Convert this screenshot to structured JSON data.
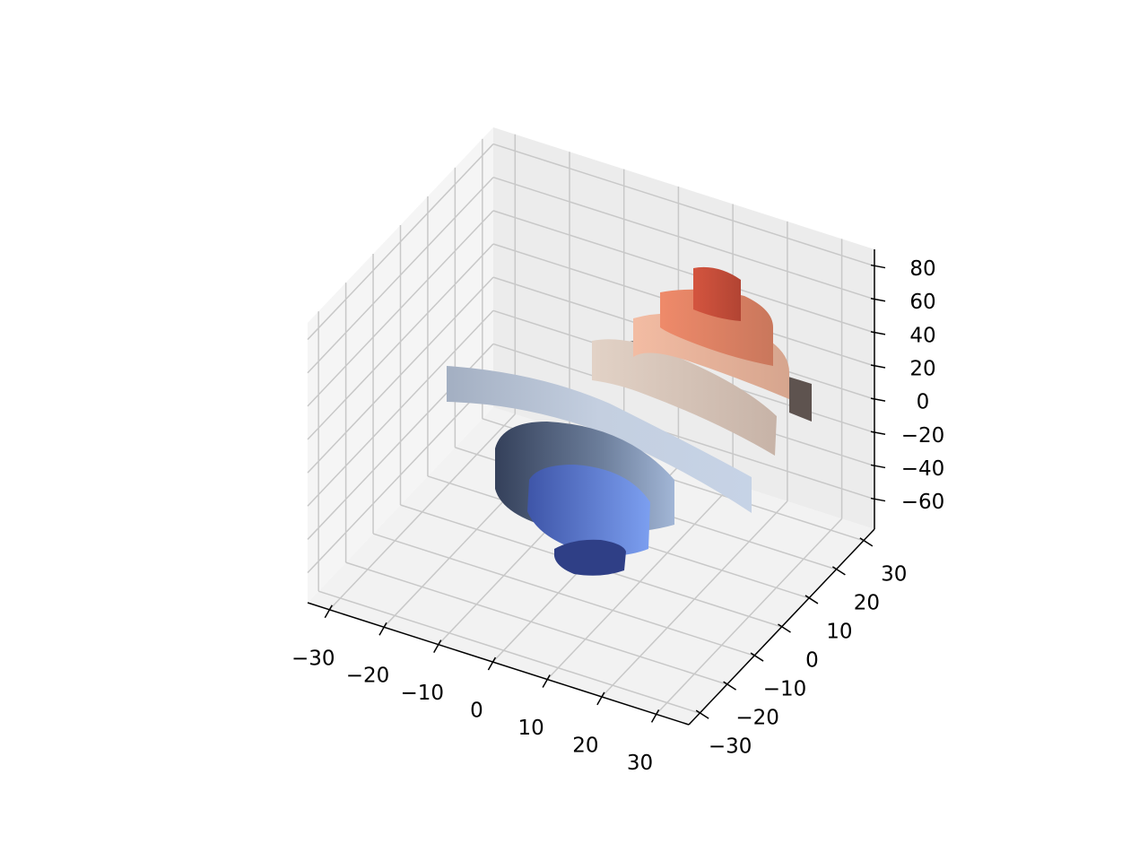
{
  "chart_data": {
    "type": "surface3d",
    "xlim": [
      -34,
      36
    ],
    "ylim": [
      -34,
      34
    ],
    "zlim": [
      -78,
      90
    ],
    "xticks": [
      {
        "value": -30,
        "label": "−30"
      },
      {
        "value": -20,
        "label": "−20"
      },
      {
        "value": -10,
        "label": "−10"
      },
      0,
      10,
      20,
      30
    ],
    "yticks": [
      {
        "value": -30,
        "label": "−30"
      },
      {
        "value": -20,
        "label": "−20"
      },
      {
        "value": -10,
        "label": "−10"
      },
      0,
      10,
      20,
      30
    ],
    "zticks": [
      {
        "value": -60,
        "label": "−60"
      },
      {
        "value": -40,
        "label": "−40"
      },
      {
        "value": -20,
        "label": "−20"
      },
      0,
      20,
      40,
      60,
      80
    ],
    "grid": true
  }
}
